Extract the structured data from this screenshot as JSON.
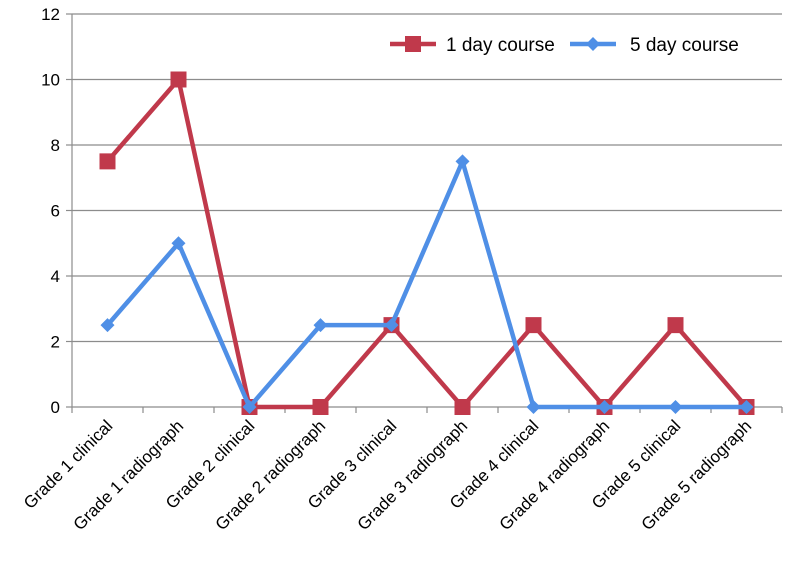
{
  "chart_data": {
    "type": "line",
    "title": "",
    "xlabel": "",
    "ylabel": "",
    "categories": [
      "Grade 1 clinical",
      "Grade 1 radiograph",
      "Grade 2 clinical",
      "Grade 2 radiograph",
      "Grade 3 clinical",
      "Grade 3 radiograph",
      "Grade 4 clinical",
      "Grade 4 radiograph",
      "Grade 5 clinical",
      "Grade 5 radiograph"
    ],
    "y_ticks": [
      "0",
      "2",
      "4",
      "6",
      "8",
      "10",
      "12"
    ],
    "ylim": [
      0,
      12
    ],
    "grid": true,
    "legend_position": "top-right",
    "series": [
      {
        "name": "1 day course",
        "color": "#C0394B",
        "marker": "square",
        "values": [
          7.5,
          10,
          0,
          0,
          2.5,
          0,
          2.5,
          0,
          2.5,
          0
        ]
      },
      {
        "name": "5 day course",
        "color": "#4F8FE6",
        "marker": "diamond",
        "values": [
          2.5,
          5,
          0,
          2.5,
          2.5,
          7.5,
          0,
          0,
          0,
          0
        ]
      }
    ]
  }
}
